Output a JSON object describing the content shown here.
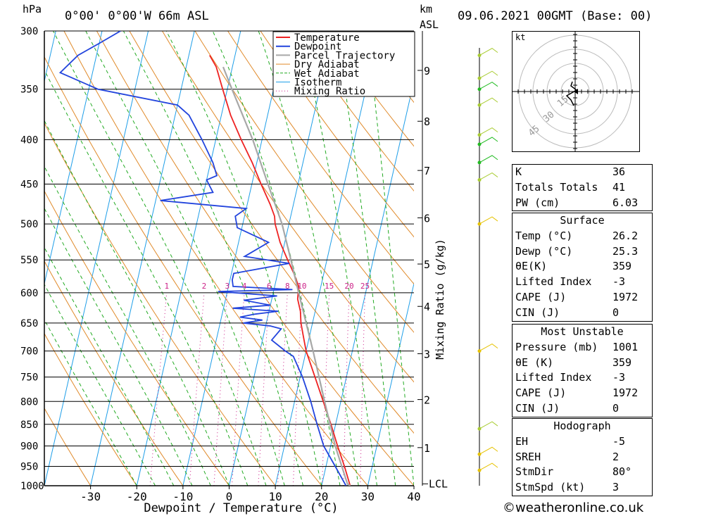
{
  "header": {
    "pressure_unit": "hPa",
    "location": "0°00' 0°00'W 66m ASL",
    "km_label": "km",
    "asl_label": "ASL",
    "datetime": "09.06.2021 00GMT (Base: 00)"
  },
  "chart_data": {
    "type": "line",
    "title": "",
    "xlabel": "Dewpoint / Temperature (°C)",
    "ylabel": "",
    "right_axis_label": "Mixing Ratio (g/kg)",
    "pressure_levels": [
      300,
      350,
      400,
      450,
      500,
      550,
      600,
      650,
      700,
      750,
      800,
      850,
      900,
      950,
      1000
    ],
    "temp_ticks": [
      -30,
      -20,
      -10,
      0,
      10,
      20,
      30,
      40
    ],
    "xlim": [
      -40,
      40
    ],
    "ylim": [
      1000,
      300
    ],
    "skew_deg_per_decade": 43,
    "km_ticks": [
      {
        "label": "1",
        "p": 904
      },
      {
        "label": "2",
        "p": 796
      },
      {
        "label": "3",
        "p": 705
      },
      {
        "label": "4",
        "p": 622
      },
      {
        "label": "5",
        "p": 556
      },
      {
        "label": "6",
        "p": 492
      },
      {
        "label": "7",
        "p": 434
      },
      {
        "label": "8",
        "p": 381
      },
      {
        "label": "9",
        "p": 333
      }
    ],
    "lcl": {
      "label": "LCL",
      "p": 995
    },
    "mixing_ratios": [
      "1",
      "2",
      "3",
      "4",
      "6",
      "8",
      "10",
      "15",
      "20",
      "25"
    ],
    "legend": [
      "Temperature",
      "Dewpoint",
      "Parcel Trajectory",
      "Dry Adiabat",
      "Wet Adiabat",
      "Isotherm",
      "Mixing Ratio"
    ],
    "legend_position": "top-right",
    "colors": {
      "temperature": "#ee2222",
      "dewpoint": "#2244dd",
      "parcel": "#a8a8a8",
      "dry_adiabat": "#e08a2a",
      "wet_adiabat": "#22aa22",
      "isotherm": "#1e9ee8",
      "mixing_ratio": "#cc2288"
    },
    "series": [
      {
        "name": "Temperature",
        "points": [
          [
            1000,
            26.2
          ],
          [
            950,
            24.0
          ],
          [
            900,
            21.5
          ],
          [
            850,
            19.0
          ],
          [
            800,
            16.2
          ],
          [
            750,
            13.2
          ],
          [
            700,
            10.0
          ],
          [
            670,
            8.5
          ],
          [
            650,
            7.5
          ],
          [
            630,
            6.8
          ],
          [
            610,
            5.6
          ],
          [
            590,
            5.2
          ],
          [
            570,
            3.5
          ],
          [
            550,
            1.5
          ],
          [
            525,
            -1.0
          ],
          [
            500,
            -3.0
          ],
          [
            490,
            -3.5
          ],
          [
            475,
            -5.0
          ],
          [
            450,
            -8.0
          ],
          [
            425,
            -11.0
          ],
          [
            400,
            -14.5
          ],
          [
            375,
            -18.0
          ],
          [
            350,
            -21.0
          ],
          [
            330,
            -23.5
          ],
          [
            320,
            -25.5
          ]
        ]
      },
      {
        "name": "Dewpoint",
        "points": [
          [
            1000,
            25.3
          ],
          [
            950,
            22.0
          ],
          [
            900,
            18.5
          ],
          [
            850,
            16.0
          ],
          [
            800,
            13.5
          ],
          [
            750,
            10.5
          ],
          [
            710,
            7.5
          ],
          [
            700,
            5.5
          ],
          [
            680,
            2.0
          ],
          [
            660,
            3.5
          ],
          [
            655,
            1.0
          ],
          [
            650,
            -5.0
          ],
          [
            645,
            -1.0
          ],
          [
            640,
            -6.0
          ],
          [
            635,
            -3.0
          ],
          [
            630,
            2.0
          ],
          [
            625,
            -8.0
          ],
          [
            620,
            0.0
          ],
          [
            612,
            -6.0
          ],
          [
            605,
            1.0
          ],
          [
            598,
            -12.0
          ],
          [
            595,
            4.0
          ],
          [
            590,
            -9.0
          ],
          [
            580,
            -9.5
          ],
          [
            570,
            -9.5
          ],
          [
            555,
            2.0
          ],
          [
            545,
            -8.0
          ],
          [
            525,
            -3.5
          ],
          [
            505,
            -11.0
          ],
          [
            490,
            -12.0
          ],
          [
            480,
            -10.0
          ],
          [
            470,
            -29.0
          ],
          [
            460,
            -18.0
          ],
          [
            445,
            -20.0
          ],
          [
            440,
            -18.0
          ],
          [
            425,
            -19.5
          ],
          [
            400,
            -23.0
          ],
          [
            375,
            -27.0
          ],
          [
            365,
            -30.0
          ],
          [
            350,
            -48.0
          ],
          [
            335,
            -57.0
          ],
          [
            320,
            -54.0
          ],
          [
            310,
            -50.0
          ],
          [
            300,
            -46.0
          ]
        ]
      },
      {
        "name": "Parcel Trajectory",
        "points": [
          [
            1000,
            26.2
          ],
          [
            995,
            25.5
          ],
          [
            900,
            21.0
          ],
          [
            800,
            16.5
          ],
          [
            700,
            11.5
          ],
          [
            600,
            5.5
          ],
          [
            550,
            2.2
          ],
          [
            500,
            -1.5
          ],
          [
            450,
            -6.5
          ],
          [
            400,
            -12.0
          ],
          [
            350,
            -19.0
          ],
          [
            330,
            -22.0
          ]
        ]
      }
    ]
  },
  "hodograph": {
    "unit_label": "kt",
    "ring_labels": [
      "15",
      "30",
      "45"
    ]
  },
  "indices": [
    {
      "label": "K",
      "value": "36"
    },
    {
      "label": "Totals Totals",
      "value": "41"
    },
    {
      "label": "PW (cm)",
      "value": "6.03"
    }
  ],
  "surface": {
    "title": "Surface",
    "rows": [
      {
        "label": "Temp (°C)",
        "value": "26.2"
      },
      {
        "label": "Dewp (°C)",
        "value": "25.3"
      },
      {
        "label": "θE(K)",
        "value": "359"
      },
      {
        "label": "Lifted Index",
        "value": "-3"
      },
      {
        "label": "CAPE (J)",
        "value": "1972"
      },
      {
        "label": "CIN (J)",
        "value": "0"
      }
    ]
  },
  "most_unstable": {
    "title": "Most Unstable",
    "rows": [
      {
        "label": "Pressure (mb)",
        "value": "1001"
      },
      {
        "label": "θE (K)",
        "value": "359"
      },
      {
        "label": "Lifted Index",
        "value": "-3"
      },
      {
        "label": "CAPE (J)",
        "value": "1972"
      },
      {
        "label": "CIN (J)",
        "value": "0"
      }
    ]
  },
  "hodograph_table": {
    "title": "Hodograph",
    "rows": [
      {
        "label": "EH",
        "value": "-5"
      },
      {
        "label": "SREH",
        "value": "2"
      },
      {
        "label": "StmDir",
        "value": "80°"
      },
      {
        "label": "StmSpd (kt)",
        "value": "3"
      }
    ]
  },
  "footer": {
    "copyright": "©weatheronline.co.uk"
  }
}
